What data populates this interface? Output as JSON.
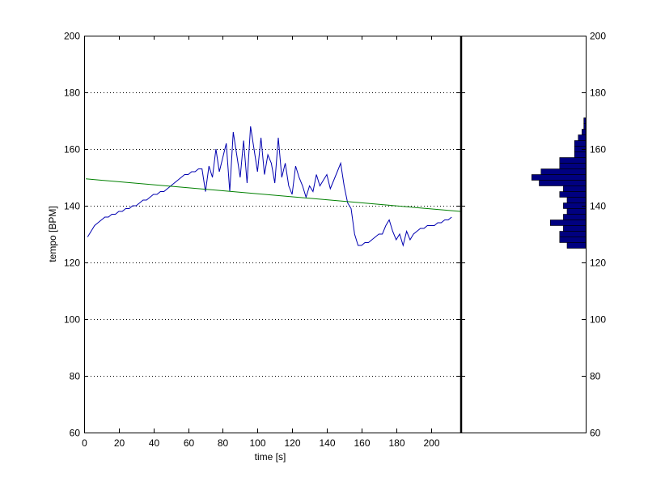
{
  "chart_data": {
    "type": "line",
    "xlabel": "time [s]",
    "ylabel": "tempo [BPM]",
    "xlim": [
      0,
      217
    ],
    "ylim": [
      60,
      200
    ],
    "xticks": [
      0,
      20,
      40,
      60,
      80,
      100,
      120,
      140,
      160,
      180,
      200
    ],
    "yticks": [
      60,
      80,
      100,
      120,
      140,
      160,
      180,
      200
    ],
    "grid": "horizontal dotted",
    "series": [
      {
        "color": "#0000b0",
        "x": [
          2,
          4,
          6,
          8,
          10,
          12,
          14,
          16,
          18,
          20,
          22,
          24,
          26,
          28,
          30,
          32,
          34,
          36,
          38,
          40,
          42,
          44,
          46,
          48,
          50,
          52,
          54,
          56,
          58,
          60,
          62,
          64,
          66,
          68,
          70,
          72,
          74,
          76,
          78,
          80,
          82,
          84,
          86,
          88,
          90,
          92,
          94,
          96,
          98,
          100,
          102,
          104,
          106,
          108,
          110,
          112,
          114,
          116,
          118,
          120,
          122,
          124,
          126,
          128,
          130,
          132,
          134,
          136,
          138,
          140,
          142,
          144,
          146,
          148,
          150,
          152,
          154,
          156,
          158,
          160,
          162,
          164,
          166,
          168,
          170,
          172,
          174,
          176,
          178,
          180,
          182,
          184,
          186,
          188,
          190,
          192,
          194,
          196,
          198,
          200,
          202,
          204,
          206,
          208,
          210,
          212
        ],
        "y": [
          129,
          131,
          133,
          134,
          135,
          136,
          136,
          137,
          137,
          138,
          138,
          139,
          139,
          140,
          140,
          141,
          142,
          142,
          143,
          144,
          144,
          145,
          145,
          146,
          147,
          148,
          149,
          150,
          151,
          151,
          152,
          152,
          153,
          153,
          145,
          154,
          150,
          160,
          152,
          157,
          162,
          145,
          166,
          158,
          150,
          163,
          148,
          168,
          160,
          152,
          164,
          151,
          158,
          155,
          148,
          164,
          150,
          155,
          147,
          144,
          154,
          150,
          147,
          143,
          147,
          145,
          151,
          147,
          149,
          151,
          146,
          149,
          152,
          155,
          147,
          141,
          139,
          130,
          126,
          126,
          127,
          127,
          128,
          129,
          130,
          130,
          133,
          135,
          131,
          128,
          130,
          126,
          131,
          128,
          130,
          131,
          132,
          132,
          133,
          133,
          133,
          134,
          134,
          135,
          135,
          136
        ]
      },
      {
        "color": "#008000",
        "x": [
          1,
          217
        ],
        "y": [
          149.5,
          138
        ]
      }
    ]
  },
  "histogram": {
    "color": "#000080",
    "ylim": [
      60,
      200
    ],
    "bin_width": 2,
    "bins": [
      {
        "y": 126,
        "count": 10
      },
      {
        "y": 128,
        "count": 14
      },
      {
        "y": 130,
        "count": 14
      },
      {
        "y": 132,
        "count": 12
      },
      {
        "y": 134,
        "count": 19
      },
      {
        "y": 136,
        "count": 12
      },
      {
        "y": 138,
        "count": 10
      },
      {
        "y": 140,
        "count": 12
      },
      {
        "y": 142,
        "count": 10
      },
      {
        "y": 144,
        "count": 14
      },
      {
        "y": 146,
        "count": 12
      },
      {
        "y": 148,
        "count": 25
      },
      {
        "y": 150,
        "count": 29
      },
      {
        "y": 152,
        "count": 24
      },
      {
        "y": 154,
        "count": 14
      },
      {
        "y": 156,
        "count": 14
      },
      {
        "y": 158,
        "count": 6
      },
      {
        "y": 160,
        "count": 6
      },
      {
        "y": 162,
        "count": 6
      },
      {
        "y": 164,
        "count": 4
      },
      {
        "y": 166,
        "count": 2
      },
      {
        "y": 168,
        "count": 1
      },
      {
        "y": 170,
        "count": 1
      }
    ]
  }
}
